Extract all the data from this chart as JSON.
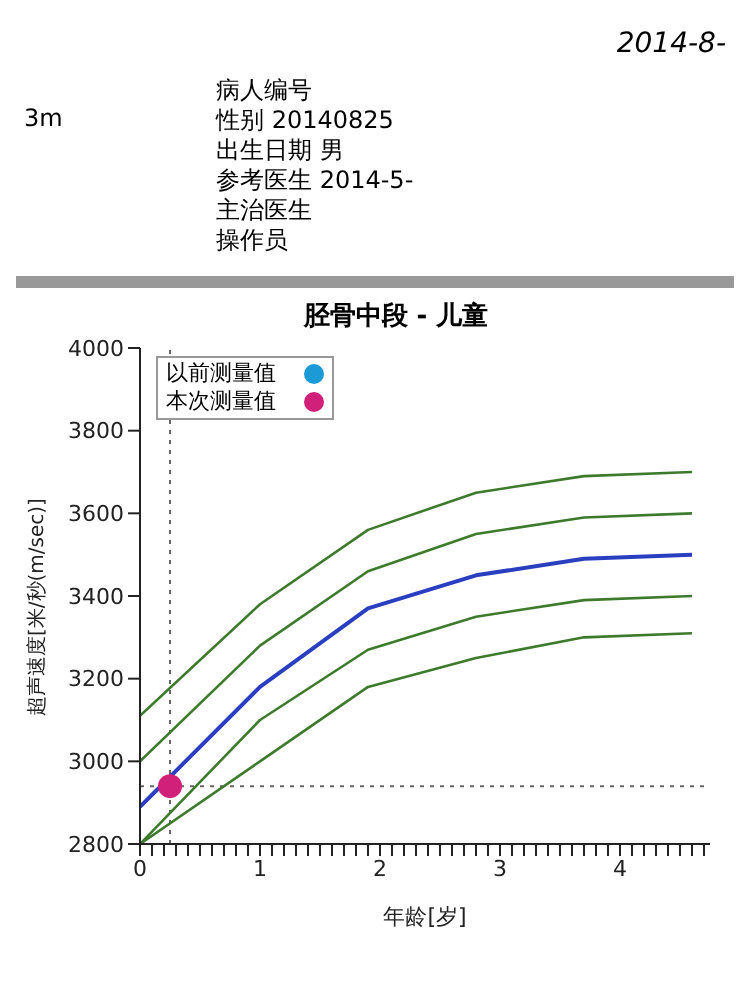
{
  "chart_data": {
    "type": "line",
    "title": "胫骨中段 - 儿童",
    "xlabel": "年龄[岁]",
    "ylabel": "超声速度[米/秒(m/sec)]",
    "annotations": [
      "2014-8-",
      "3m",
      "病人编号",
      "性别 20140825",
      "出生日期 男",
      "参考医生 2014-5-",
      "主治医生",
      "操作员"
    ],
    "xlim": [
      0,
      4.75
    ],
    "ylim": [
      2800,
      4000
    ],
    "xticks": [
      0,
      {
        "value": 0.1,
        "label": null
      },
      {
        "value": 0.2,
        "label": null
      },
      {
        "value": 0.3,
        "label": null
      },
      {
        "value": 0.4,
        "label": null
      },
      {
        "value": 0.5,
        "label": null
      },
      {
        "value": 0.6,
        "label": null
      },
      {
        "value": 0.7,
        "label": null
      },
      {
        "value": 0.8,
        "label": null
      },
      {
        "value": 0.9,
        "label": null
      },
      1,
      {
        "value": 1.1,
        "label": null
      },
      {
        "value": 1.2,
        "label": null
      },
      {
        "value": 1.3,
        "label": null
      },
      {
        "value": 1.4,
        "label": null
      },
      {
        "value": 1.5,
        "label": null
      },
      {
        "value": 1.6,
        "label": null
      },
      {
        "value": 1.7,
        "label": null
      },
      {
        "value": 1.8,
        "label": null
      },
      {
        "value": 1.9,
        "label": null
      },
      2,
      {
        "value": 2.1,
        "label": null
      },
      {
        "value": 2.2,
        "label": null
      },
      {
        "value": 2.3,
        "label": null
      },
      {
        "value": 2.4,
        "label": null
      },
      {
        "value": 2.5,
        "label": null
      },
      {
        "value": 2.6,
        "label": null
      },
      {
        "value": 2.7,
        "label": null
      },
      {
        "value": 2.8,
        "label": null
      },
      {
        "value": 2.9,
        "label": null
      },
      3,
      {
        "value": 3.1,
        "label": null
      },
      {
        "value": 3.2,
        "label": null
      },
      {
        "value": 3.3,
        "label": null
      },
      {
        "value": 3.4,
        "label": null
      },
      {
        "value": 3.5,
        "label": null
      },
      {
        "value": 3.6,
        "label": null
      },
      {
        "value": 3.7,
        "label": null
      },
      {
        "value": 3.8,
        "label": null
      },
      {
        "value": 3.9,
        "label": null
      },
      4,
      {
        "value": 4.1,
        "label": null
      },
      {
        "value": 4.2,
        "label": null
      },
      {
        "value": 4.3,
        "label": null
      },
      {
        "value": 4.4,
        "label": null
      },
      {
        "value": 4.5,
        "label": null
      },
      {
        "value": 4.6,
        "label": null
      },
      {
        "value": 4.7,
        "label": null
      }
    ],
    "yticks": [
      2800,
      3000,
      3200,
      3400,
      3600,
      3800,
      4000
    ],
    "grid": false,
    "legend": "top left",
    "marker": "none",
    "line_style": "solid",
    "ref_lines": [
      {
        "axis": "x",
        "value": 0.25,
        "line_style": "dotted",
        "color": "#666666"
      },
      {
        "axis": "y",
        "value": 2940,
        "line_style": "dotted",
        "color": "#666666"
      }
    ],
    "series": [
      {
        "color": "#3d7a2c",
        "x": [
          0,
          1,
          1.9,
          2.8,
          3.7,
          4.6
        ],
        "values": [
          3110,
          3380,
          3560,
          3650,
          3690,
          3700
        ]
      },
      {
        "color": "#3d7a2c",
        "x": [
          0,
          1,
          1.9,
          2.8,
          3.7,
          4.6
        ],
        "values": [
          3000,
          3280,
          3460,
          3550,
          3590,
          3600
        ]
      },
      {
        "color": "#2a3fc0",
        "x": [
          0,
          1,
          1.9,
          2.8,
          3.7,
          4.6
        ],
        "values": [
          2890,
          3180,
          3370,
          3450,
          3490,
          3500
        ]
      },
      {
        "color": "#3d7a2c",
        "x": [
          0,
          1,
          1.9,
          2.8,
          3.7,
          4.6
        ],
        "values": [
          2800,
          3100,
          3270,
          3350,
          3390,
          3400
        ]
      },
      {
        "color": "#3d7a2c",
        "x": [
          0,
          1,
          1.9,
          2.8,
          3.7,
          4.6
        ],
        "values": [
          2800,
          3000,
          3180,
          3250,
          3300,
          3310
        ]
      },
      {
        "type": "scatter",
        "name": "以前测量值",
        "color": "#1b9ad6",
        "marker": "circle"
      },
      {
        "type": "scatter",
        "name": "本次测量值",
        "color": "#d0207a",
        "marker": "circle",
        "x": [
          0.25
        ],
        "values": [
          2940
        ]
      }
    ]
  }
}
